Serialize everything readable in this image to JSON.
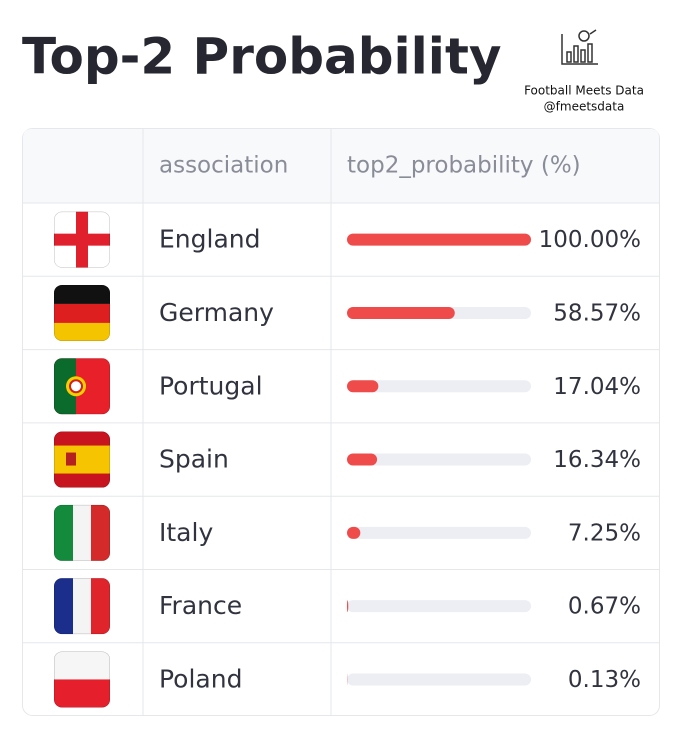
{
  "header": {
    "title": "Top-2 Probability",
    "brand": "Football Meets Data",
    "handle": "@fmeetsdata"
  },
  "table": {
    "columns": [
      "association",
      "top2_probability (%)"
    ],
    "rows": [
      [
        "England",
        100.0
      ],
      [
        "Germany",
        58.57
      ],
      [
        "Portugal",
        17.04
      ],
      [
        "Spain",
        16.34
      ],
      [
        "Italy",
        7.25
      ],
      [
        "France",
        0.67
      ],
      [
        "Poland",
        0.13
      ]
    ],
    "value_labels": [
      "100.00%",
      "58.57%",
      "17.04%",
      "16.34%",
      "7.25%",
      "0.67%",
      "0.13%"
    ],
    "xlim": [
      0,
      100
    ],
    "bar_color": "#f04b4b"
  }
}
